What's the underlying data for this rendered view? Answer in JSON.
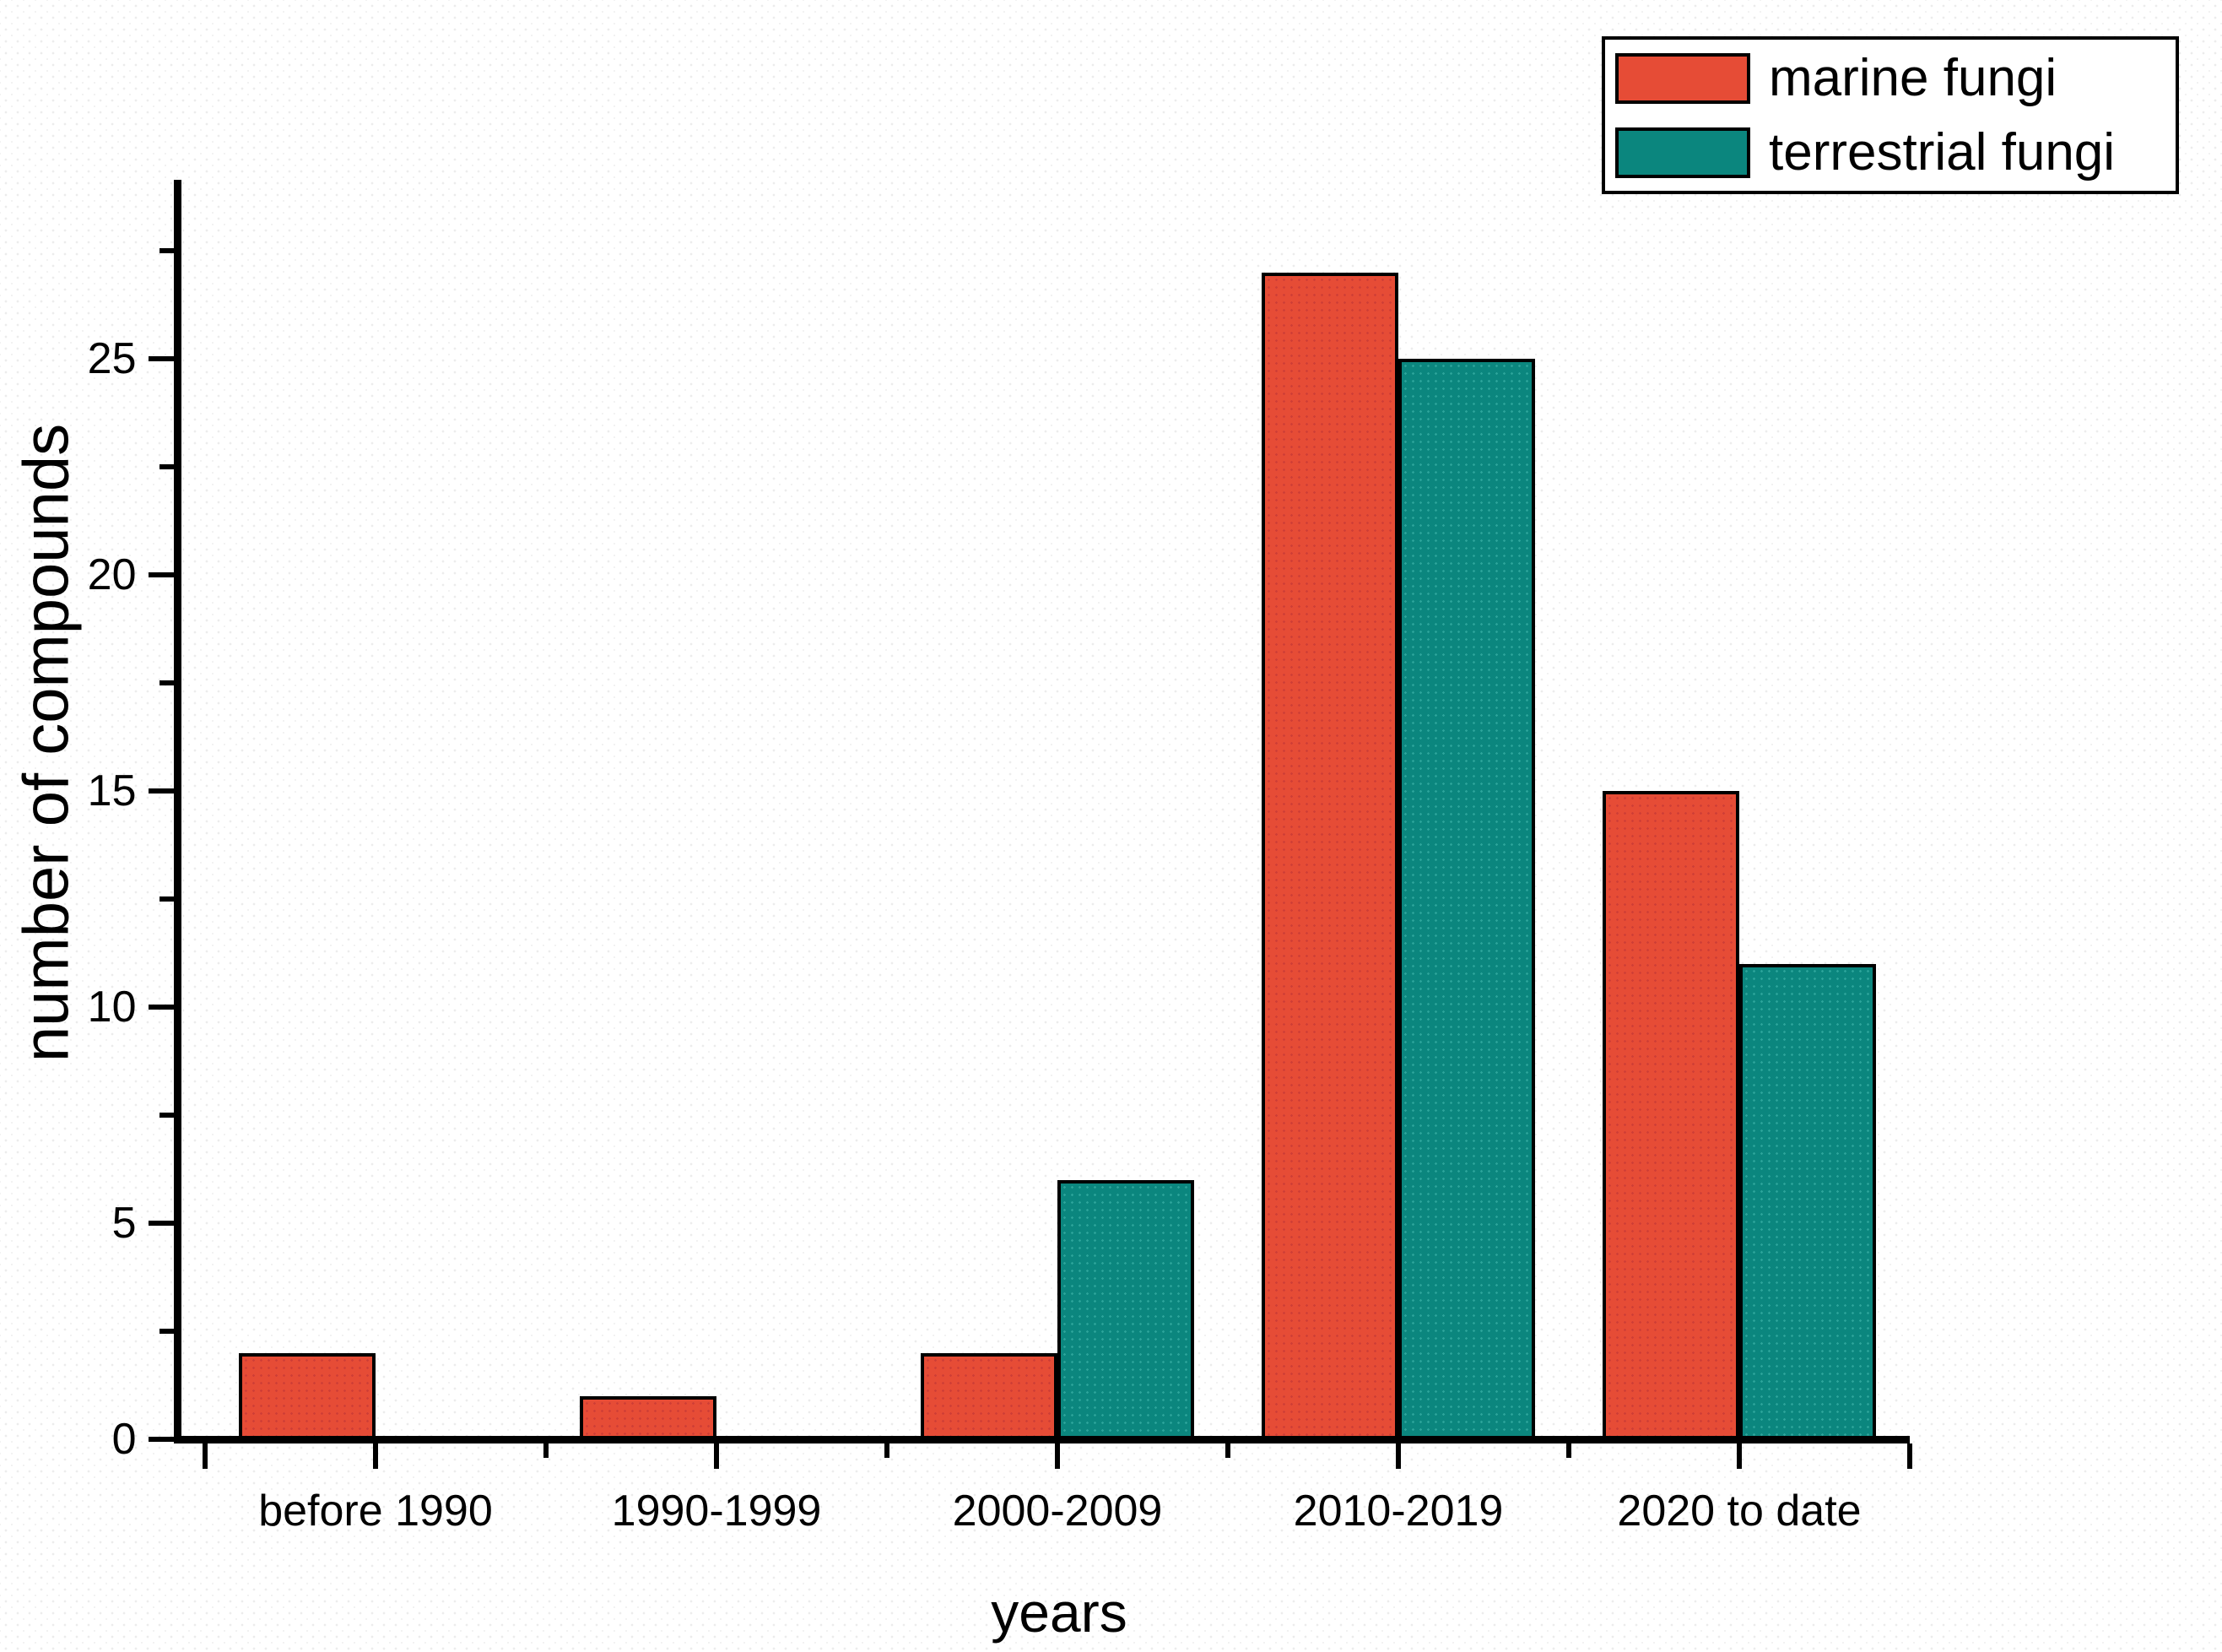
{
  "chart_data": {
    "type": "bar",
    "title": "",
    "xlabel": "years",
    "ylabel": "number of compounds",
    "categories": [
      "before 1990",
      "1990-1999",
      "2000-2009",
      "2010-2019",
      "2020 to date"
    ],
    "series": [
      {
        "name": "marine fungi",
        "color": "#E64C36",
        "values": [
          2,
          1,
          2,
          27,
          15
        ]
      },
      {
        "name": "terrestrial fungi",
        "color": "#0B867E",
        "values": [
          0,
          0,
          6,
          25,
          11
        ]
      }
    ],
    "y_axis": {
      "major_ticks": [
        0,
        5,
        10,
        15,
        20,
        25
      ],
      "major_tick_labels": [
        "0",
        "5",
        "10",
        "15",
        "20",
        "25"
      ],
      "minor_ticks": [
        2.5,
        7.5,
        12.5,
        17.5,
        22.5,
        27.5
      ],
      "range": [
        0,
        29.1
      ]
    },
    "grid": "off",
    "legend_position": "top-right",
    "bar_outline_color": "#000000",
    "axis_color": "#000000"
  }
}
